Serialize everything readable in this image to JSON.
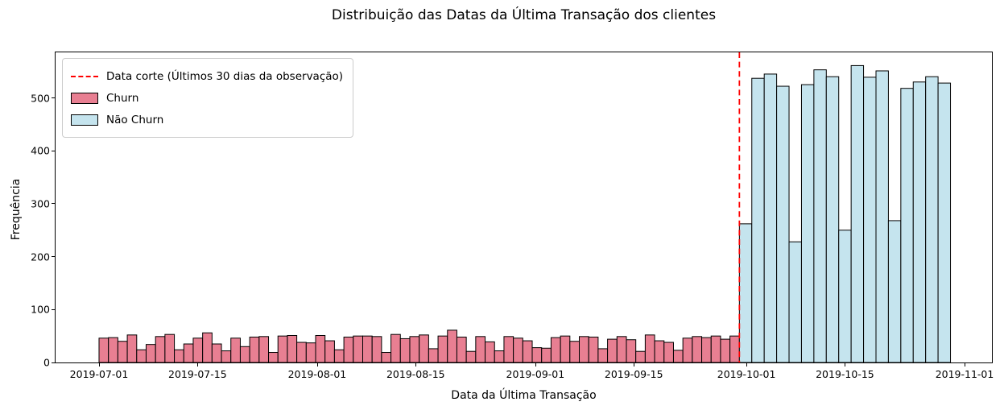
{
  "title": "Distribuição das Datas da Última Transação dos clientes",
  "colors": {
    "churn_fill": "#e87f92",
    "nao_churn_fill": "#c5e4ee",
    "bar_edge": "#000000",
    "cutoff_line": "#ff0000",
    "axis": "#000000"
  },
  "legend": {
    "items": [
      {
        "label": "Data corte (Últimos 30 dias da observação)",
        "sample": "red-dashed-line"
      },
      {
        "label": "Churn",
        "sample": "pink-swatch"
      },
      {
        "label": "Não Churn",
        "sample": "lightblue-swatch"
      }
    ]
  },
  "chart_data": {
    "type": "bar",
    "subtype": "histogram",
    "title": "Distribuição das Datas da Última Transação dos clientes",
    "xlabel": "Data da Última Transação",
    "ylabel": "Frequência",
    "ylim": [
      0,
      586
    ],
    "yticks": [
      0,
      100,
      200,
      300,
      400,
      500
    ],
    "xticks": [
      "2019-07-01",
      "2019-07-15",
      "2019-08-01",
      "2019-08-15",
      "2019-09-01",
      "2019-09-15",
      "2019-10-01",
      "2019-10-15",
      "2019-11-01"
    ],
    "grid": false,
    "legend_position": "upper left",
    "cutoff_date": "2019-09-30",
    "series": [
      {
        "name": "Churn",
        "color": "#e87f92",
        "bin_start": "2019-07-01",
        "bin_end": "2019-09-30",
        "n_bins": 68,
        "values": [
          46,
          47,
          40,
          52,
          24,
          34,
          49,
          53,
          24,
          35,
          46,
          56,
          35,
          22,
          46,
          30,
          48,
          49,
          19,
          50,
          51,
          38,
          37,
          51,
          41,
          24,
          48,
          50,
          50,
          49,
          19,
          53,
          45,
          49,
          52,
          26,
          50,
          61,
          48,
          21,
          49,
          39,
          22,
          49,
          46,
          41,
          28,
          27,
          47,
          50,
          40,
          49,
          48,
          26,
          44,
          49,
          43,
          21,
          52,
          41,
          38,
          23,
          46,
          49,
          47,
          50,
          44,
          50
        ]
      },
      {
        "name": "Não Churn",
        "color": "#c5e4ee",
        "bin_start": "2019-09-30",
        "bin_end": "2019-10-30",
        "n_bins": 17,
        "values": [
          262,
          537,
          545,
          522,
          228,
          525,
          553,
          540,
          250,
          561,
          539,
          551,
          268,
          518,
          530,
          540,
          528
        ]
      }
    ]
  }
}
